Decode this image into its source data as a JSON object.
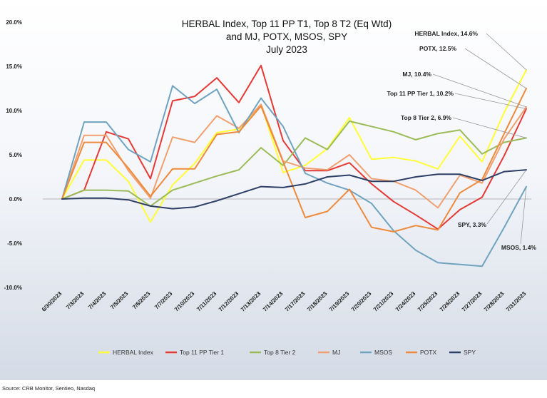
{
  "chart_data": {
    "type": "line",
    "title": [
      "HERBAL Index, Top 11 PP T1, Top 8 T2  (Eq Wtd)",
      "and MJ, POTX, MSOS, SPY",
      "July 2023"
    ],
    "xlabel": "",
    "ylabel": "",
    "ylim": [
      -10,
      20
    ],
    "yticks": [
      "20.0%",
      "15.0%",
      "10.0%",
      "5.0%",
      "0.0%",
      "-5.0%",
      "-10.0%"
    ],
    "ytick_values": [
      20,
      15,
      10,
      5,
      0,
      -5,
      -10
    ],
    "categories": [
      "6/30/2023",
      "7/3/2023",
      "7/4/2023",
      "7/5/2023",
      "7/6/2023",
      "7/7/2023",
      "7/10/2023",
      "7/11/2023",
      "7/12/2023",
      "7/13/2023",
      "7/14/2023",
      "7/17/2023",
      "7/18/2023",
      "7/19/2023",
      "7/20/2023",
      "7/21/2023",
      "7/24/2023",
      "7/25/2023",
      "7/26/2023",
      "7/27/2023",
      "7/28/2023",
      "7/31/2023"
    ],
    "series": [
      {
        "name": "HERBAL Index",
        "color": "#ffff33",
        "values": [
          0,
          4.4,
          4.4,
          2.0,
          -2.6,
          1.6,
          4.0,
          7.5,
          7.9,
          10.7,
          3.0,
          3.8,
          5.7,
          9.2,
          4.5,
          4.7,
          4.3,
          3.4,
          7.1,
          4.2,
          9.8,
          14.6
        ]
      },
      {
        "name": "Top 11 PP Tier 1",
        "color": "#e53935",
        "values": [
          0,
          1.0,
          7.6,
          6.8,
          2.3,
          11.1,
          11.6,
          13.7,
          10.9,
          15.1,
          6.6,
          3.2,
          3.2,
          4.1,
          1.7,
          -0.3,
          -1.8,
          -3.4,
          -1.2,
          0.2,
          4.9,
          10.2
        ]
      },
      {
        "name": "Top 8 Tier 2",
        "color": "#9bbb59",
        "values": [
          0,
          1.0,
          1.0,
          0.9,
          -0.8,
          1.0,
          1.8,
          2.6,
          3.3,
          5.8,
          3.8,
          6.9,
          5.6,
          8.8,
          8.2,
          7.6,
          6.7,
          7.4,
          7.8,
          5.1,
          6.4,
          6.9
        ]
      },
      {
        "name": "MJ",
        "color": "#f0a070",
        "values": [
          0,
          7.2,
          7.2,
          3.2,
          0.1,
          7.0,
          6.4,
          9.4,
          8.0,
          10.7,
          4.3,
          3.5,
          3.3,
          5.0,
          2.3,
          2.0,
          1.0,
          -1.0,
          2.7,
          1.8,
          6.8,
          10.4
        ]
      },
      {
        "name": "MSOS",
        "color": "#6fa3bf",
        "values": [
          0,
          8.7,
          8.7,
          5.6,
          4.2,
          12.8,
          10.8,
          12.4,
          7.5,
          11.4,
          8.2,
          2.9,
          1.8,
          1.0,
          -0.5,
          -3.6,
          -5.8,
          -7.2,
          -7.4,
          -7.6,
          -3.2,
          1.4
        ]
      },
      {
        "name": "POTX",
        "color": "#ed8a3c",
        "values": [
          0,
          6.4,
          6.4,
          3.5,
          0.3,
          3.4,
          3.4,
          7.3,
          7.6,
          10.5,
          4.2,
          -2.1,
          -1.4,
          1.1,
          -3.2,
          -3.7,
          -3.0,
          -3.5,
          0.7,
          2.2,
          7.4,
          12.5
        ]
      },
      {
        "name": "SPY",
        "color": "#2e3f66",
        "values": [
          0,
          0.1,
          0.1,
          -0.1,
          -0.8,
          -1.1,
          -0.9,
          -0.2,
          0.6,
          1.4,
          1.3,
          1.7,
          2.5,
          2.7,
          2.0,
          2.0,
          2.5,
          2.8,
          2.8,
          2.1,
          3.1,
          3.3
        ]
      }
    ],
    "annotations": [
      {
        "text": "HERBAL Index, 14.6%",
        "series": "HERBAL Index"
      },
      {
        "text": "POTX, 12.5%",
        "series": "POTX"
      },
      {
        "text": "MJ, 10.4%",
        "series": "MJ"
      },
      {
        "text": "Top 11 PP Tier 1, 10.2%",
        "series": "Top 11 PP Tier 1"
      },
      {
        "text": "Top 8 Tier 2, 6.9%",
        "series": "Top 8 Tier 2"
      },
      {
        "text": "SPY, 3.3%",
        "series": "SPY"
      },
      {
        "text": "MSOS, 1.4%",
        "series": "MSOS"
      }
    ],
    "legend": [
      "HERBAL Index",
      "Top 11 PP Tier 1",
      "Top 8 Tier 2",
      "MJ",
      "MSOS",
      "POTX",
      "SPY"
    ],
    "legend_position": "bottom",
    "grid": false
  },
  "source": "Source: CRB Monitor, Sentieo, Nasdaq"
}
